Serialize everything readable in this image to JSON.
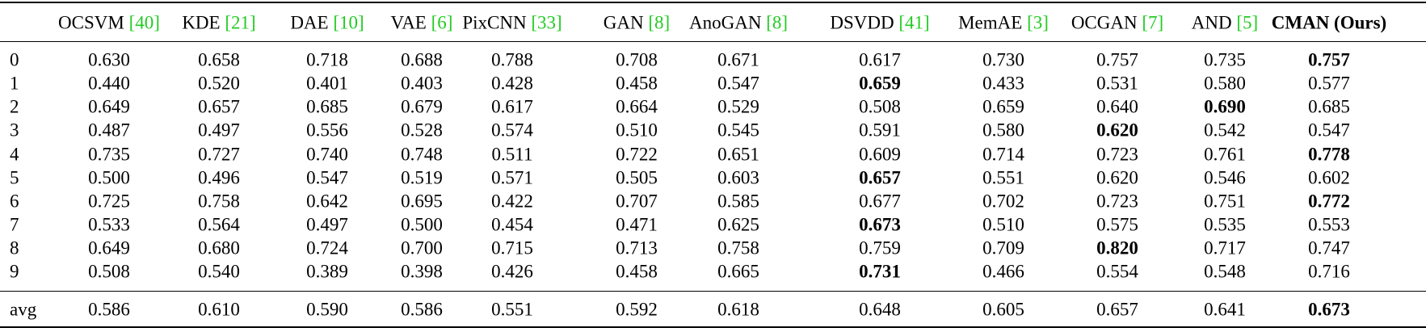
{
  "table": {
    "headers": [
      {
        "name": "OCSVM",
        "ref": "[40]"
      },
      {
        "name": "KDE",
        "ref": "[21]"
      },
      {
        "name": "DAE",
        "ref": "[10]"
      },
      {
        "name": "VAE",
        "ref": "[6]"
      },
      {
        "name": "PixCNN",
        "ref": "[33]"
      },
      {
        "name": "GAN",
        "ref": "[8]"
      },
      {
        "name": "AnoGAN",
        "ref": "[8]"
      },
      {
        "name": "DSVDD",
        "ref": "[41]"
      },
      {
        "name": "MemAE",
        "ref": "[3]"
      },
      {
        "name": "OCGAN",
        "ref": "[7]"
      },
      {
        "name": "AND",
        "ref": "[5]"
      },
      {
        "name": "CMAN (Ours)",
        "bold": true
      }
    ],
    "rows": [
      {
        "label": "0",
        "bold_column": 11,
        "values": [
          "0.630",
          "0.658",
          "0.718",
          "0.688",
          "0.788",
          "0.708",
          "0.671",
          "0.617",
          "0.730",
          "0.757",
          "0.735",
          "0.757"
        ]
      },
      {
        "label": "1",
        "bold_column": 7,
        "values": [
          "0.440",
          "0.520",
          "0.401",
          "0.403",
          "0.428",
          "0.458",
          "0.547",
          "0.659",
          "0.433",
          "0.531",
          "0.580",
          "0.577"
        ]
      },
      {
        "label": "2",
        "bold_column": 10,
        "values": [
          "0.649",
          "0.657",
          "0.685",
          "0.679",
          "0.617",
          "0.664",
          "0.529",
          "0.508",
          "0.659",
          "0.640",
          "0.690",
          "0.685"
        ]
      },
      {
        "label": "3",
        "bold_column": 9,
        "values": [
          "0.487",
          "0.497",
          "0.556",
          "0.528",
          "0.574",
          "0.510",
          "0.545",
          "0.591",
          "0.580",
          "0.620",
          "0.542",
          "0.547"
        ]
      },
      {
        "label": "4",
        "bold_column": 11,
        "values": [
          "0.735",
          "0.727",
          "0.740",
          "0.748",
          "0.511",
          "0.722",
          "0.651",
          "0.609",
          "0.714",
          "0.723",
          "0.761",
          "0.778"
        ]
      },
      {
        "label": "5",
        "bold_column": 7,
        "values": [
          "0.500",
          "0.496",
          "0.547",
          "0.519",
          "0.571",
          "0.505",
          "0.603",
          "0.657",
          "0.551",
          "0.620",
          "0.546",
          "0.602"
        ]
      },
      {
        "label": "6",
        "bold_column": 11,
        "values": [
          "0.725",
          "0.758",
          "0.642",
          "0.695",
          "0.422",
          "0.707",
          "0.585",
          "0.677",
          "0.702",
          "0.723",
          "0.751",
          "0.772"
        ]
      },
      {
        "label": "7",
        "bold_column": 7,
        "values": [
          "0.533",
          "0.564",
          "0.497",
          "0.500",
          "0.454",
          "0.471",
          "0.625",
          "0.673",
          "0.510",
          "0.575",
          "0.535",
          "0.553"
        ]
      },
      {
        "label": "8",
        "bold_column": 9,
        "values": [
          "0.649",
          "0.680",
          "0.724",
          "0.700",
          "0.715",
          "0.713",
          "0.758",
          "0.759",
          "0.709",
          "0.820",
          "0.717",
          "0.747"
        ]
      },
      {
        "label": "9",
        "bold_column": 7,
        "values": [
          "0.508",
          "0.540",
          "0.389",
          "0.398",
          "0.426",
          "0.458",
          "0.665",
          "0.731",
          "0.466",
          "0.554",
          "0.548",
          "0.716"
        ]
      }
    ],
    "summary": {
      "label": "avg",
      "bold_column": 11,
      "values": [
        "0.586",
        "0.610",
        "0.590",
        "0.586",
        "0.551",
        "0.592",
        "0.618",
        "0.648",
        "0.605",
        "0.657",
        "0.641",
        "0.673"
      ]
    }
  }
}
